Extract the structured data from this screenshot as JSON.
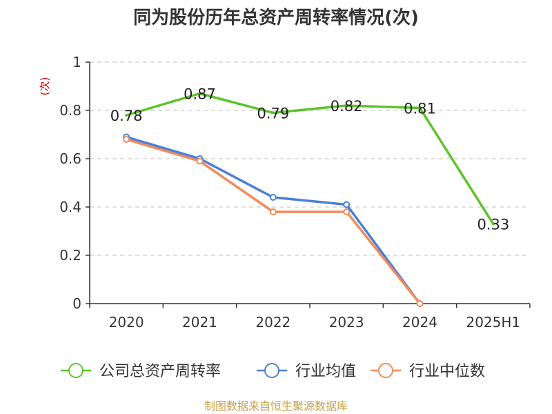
{
  "chart_data": {
    "type": "line",
    "title": "同为股份历年总资产周转率情况(次)",
    "ylabel": "(次)",
    "xlabel": "",
    "categories": [
      "2020",
      "2021",
      "2022",
      "2023",
      "2024",
      "2025H1"
    ],
    "ylim": [
      0,
      1
    ],
    "yticks": [
      "0",
      "0.2",
      "0.4",
      "0.6",
      "0.8",
      "1"
    ],
    "grid": true,
    "legend_position": "bottom",
    "series": [
      {
        "name": "公司总资产周转率",
        "color": "#5cc42a",
        "values": [
          0.78,
          0.87,
          0.79,
          0.82,
          0.81,
          0.33
        ],
        "labels": [
          "0.78",
          "0.87",
          "0.79",
          "0.82",
          "0.81",
          "0.33"
        ]
      },
      {
        "name": "行业均值",
        "color": "#4a7fdc",
        "values": [
          0.69,
          0.6,
          0.44,
          0.41,
          0.0,
          null
        ]
      },
      {
        "name": "行业中位数",
        "color": "#f28a5a",
        "values": [
          0.68,
          0.59,
          0.38,
          0.38,
          0.0,
          null
        ]
      }
    ]
  },
  "footer": {
    "source": "制图数据来自恒生聚源数据库"
  }
}
